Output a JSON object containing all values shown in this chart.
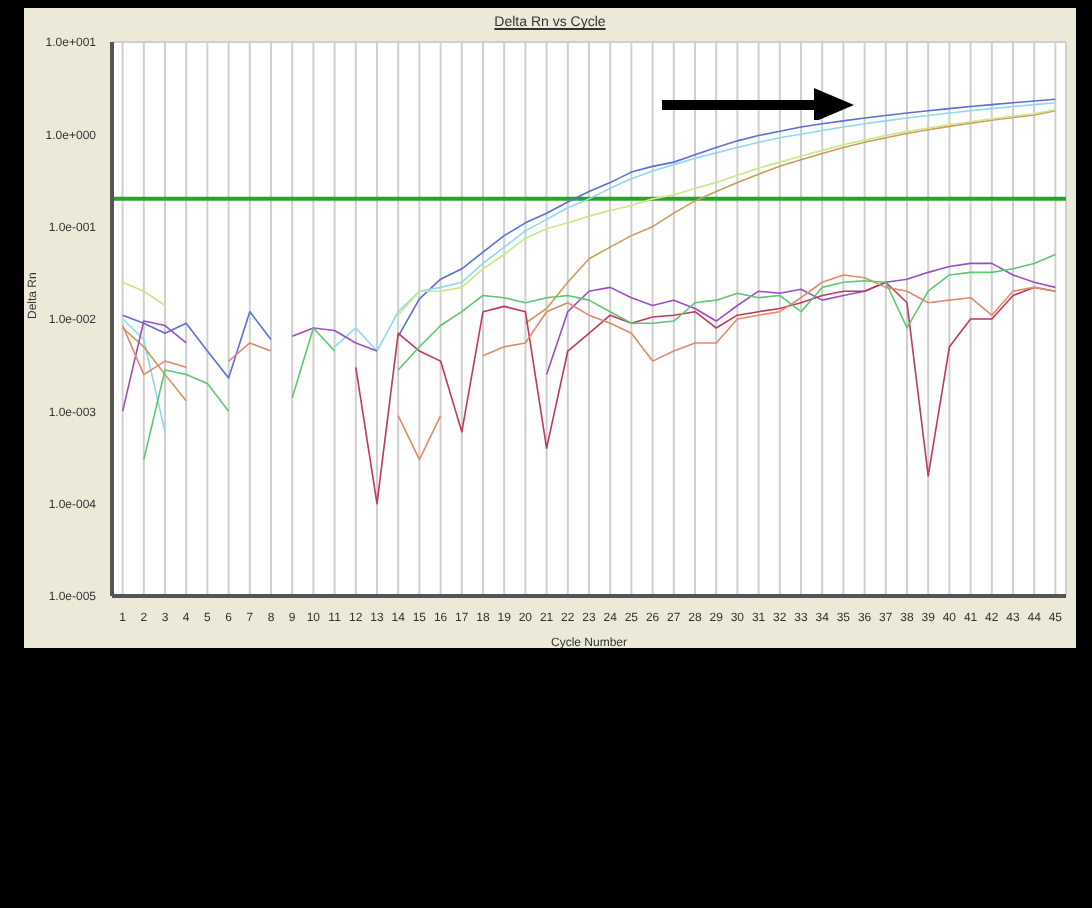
{
  "chart_data": {
    "type": "line",
    "title": "Delta Rn vs Cycle",
    "xlabel": "Cycle Number",
    "ylabel": "Delta Rn",
    "log": "y",
    "grid": true,
    "marker": "none",
    "line_style": "solid",
    "x": [
      1,
      2,
      3,
      4,
      5,
      6,
      7,
      8,
      9,
      10,
      11,
      12,
      13,
      14,
      15,
      16,
      17,
      18,
      19,
      20,
      21,
      22,
      23,
      24,
      25,
      26,
      27,
      28,
      29,
      30,
      31,
      32,
      33,
      34,
      35,
      36,
      37,
      38,
      39,
      40,
      41,
      42,
      43,
      44,
      45
    ],
    "xlim": [
      0.5,
      45.5
    ],
    "xticks": [
      1,
      2,
      3,
      4,
      5,
      6,
      7,
      8,
      9,
      10,
      11,
      12,
      13,
      14,
      15,
      16,
      17,
      18,
      19,
      20,
      21,
      22,
      23,
      24,
      25,
      26,
      27,
      28,
      29,
      30,
      31,
      32,
      33,
      34,
      35,
      36,
      37,
      38,
      39,
      40,
      41,
      42,
      43,
      44,
      45
    ],
    "ylim": [
      1e-05,
      10
    ],
    "yticks": [
      {
        "value": 1e-05,
        "label": "1.0e-005"
      },
      {
        "value": 0.0001,
        "label": "1.0e-004"
      },
      {
        "value": 0.001,
        "label": "1.0e-003"
      },
      {
        "value": 0.01,
        "label": "1.0e-002"
      },
      {
        "value": 0.1,
        "label": "1.0e-001"
      },
      {
        "value": 1,
        "label": "1.0e+000"
      },
      {
        "value": 10,
        "label": "1.0e+001"
      }
    ],
    "ref_lines": [
      {
        "axis": "y",
        "value": 0.2,
        "color": "#2ca02c"
      }
    ],
    "series": [
      {
        "color": "#5b6fd6",
        "values": [
          0.011,
          0.009,
          0.007,
          0.009,
          0.0045,
          0.0023,
          0.012,
          0.006,
          null,
          null,
          null,
          null,
          null,
          0.0065,
          0.0165,
          0.027,
          0.035,
          0.053,
          0.08,
          0.11,
          0.14,
          0.185,
          0.24,
          0.3,
          0.39,
          0.45,
          0.5,
          0.6,
          0.72,
          0.85,
          0.97,
          1.08,
          1.2,
          1.3,
          1.4,
          1.5,
          1.6,
          1.7,
          1.8,
          1.9,
          2.0,
          2.1,
          2.2,
          2.3,
          2.4
        ]
      },
      {
        "color": "#8fd8f0",
        "values": [
          0.01,
          0.006,
          0.0006,
          null,
          null,
          null,
          null,
          null,
          null,
          null,
          0.005,
          0.008,
          0.0045,
          0.012,
          0.02,
          0.022,
          0.025,
          0.04,
          0.06,
          0.09,
          0.12,
          0.16,
          0.2,
          0.26,
          0.33,
          0.4,
          0.47,
          0.55,
          0.63,
          0.72,
          0.82,
          0.92,
          1.0,
          1.1,
          1.2,
          1.3,
          1.4,
          1.5,
          1.6,
          1.7,
          1.8,
          1.9,
          2.0,
          2.1,
          2.2
        ]
      },
      {
        "color": "#d09a5a",
        "values": [
          0.008,
          0.005,
          0.0025,
          0.0013,
          null,
          null,
          null,
          null,
          null,
          null,
          null,
          null,
          null,
          null,
          null,
          null,
          null,
          null,
          null,
          0.009,
          0.013,
          0.025,
          0.045,
          0.06,
          0.08,
          0.1,
          0.14,
          0.19,
          0.24,
          0.3,
          0.37,
          0.45,
          0.53,
          0.62,
          0.72,
          0.82,
          0.92,
          1.02,
          1.12,
          1.22,
          1.32,
          1.42,
          1.52,
          1.62,
          1.8
        ]
      },
      {
        "color": "#c8e88a",
        "values": [
          0.025,
          0.02,
          0.014,
          null,
          null,
          null,
          null,
          null,
          null,
          null,
          null,
          null,
          null,
          0.011,
          0.02,
          0.02,
          0.022,
          0.035,
          0.05,
          0.075,
          0.095,
          0.11,
          0.13,
          0.15,
          0.17,
          0.2,
          0.22,
          0.26,
          0.3,
          0.36,
          0.43,
          0.5,
          0.58,
          0.67,
          0.77,
          0.87,
          0.97,
          1.07,
          1.17,
          1.27,
          1.37,
          1.47,
          1.57,
          1.67,
          1.85
        ]
      },
      {
        "color": "#9a4fc8",
        "values": [
          0.001,
          0.0095,
          0.0085,
          0.0055,
          null,
          null,
          null,
          null,
          0.0065,
          0.008,
          0.0075,
          0.0055,
          0.0045,
          null,
          null,
          null,
          null,
          null,
          null,
          null,
          0.0025,
          0.012,
          0.02,
          0.022,
          0.017,
          0.014,
          0.016,
          0.013,
          0.0095,
          0.014,
          0.02,
          0.019,
          0.021,
          0.016,
          0.018,
          0.02,
          0.025,
          0.027,
          0.032,
          0.037,
          0.04,
          0.04,
          0.03,
          0.025,
          0.022
        ]
      },
      {
        "color": "#c0395a",
        "values": [
          null,
          null,
          null,
          null,
          null,
          null,
          null,
          null,
          null,
          null,
          null,
          0.003,
          0.0001,
          0.007,
          0.0045,
          0.0035,
          0.0006,
          0.012,
          0.0137,
          0.012,
          0.0004,
          0.0045,
          0.007,
          0.011,
          0.009,
          0.0105,
          0.011,
          0.012,
          0.008,
          0.011,
          0.012,
          0.013,
          0.015,
          0.018,
          0.02,
          0.02,
          0.025,
          0.015,
          0.0002,
          0.005,
          0.01,
          0.01,
          0.018,
          0.022,
          0.02
        ]
      },
      {
        "color": "#e08a6a",
        "values": [
          0.0085,
          0.0025,
          0.0035,
          0.003,
          null,
          0.0035,
          0.0055,
          0.0045,
          null,
          null,
          null,
          null,
          null,
          0.0009,
          0.0003,
          0.0009,
          null,
          0.004,
          0.005,
          0.0055,
          0.012,
          0.015,
          0.011,
          0.009,
          0.007,
          0.0035,
          0.0045,
          0.0055,
          0.0055,
          0.01,
          0.011,
          0.012,
          0.017,
          0.025,
          0.03,
          0.028,
          0.022,
          0.02,
          0.015,
          0.016,
          0.017,
          0.011,
          0.02,
          0.022,
          0.02
        ]
      },
      {
        "color": "#5cc870",
        "values": [
          null,
          0.0003,
          0.0028,
          0.0025,
          0.002,
          0.001,
          null,
          null,
          0.0014,
          0.008,
          0.0045,
          null,
          null,
          0.0028,
          0.005,
          0.0085,
          0.012,
          0.018,
          0.017,
          0.015,
          0.017,
          0.018,
          0.016,
          0.012,
          0.009,
          0.009,
          0.0095,
          0.015,
          0.016,
          0.019,
          0.017,
          0.018,
          0.012,
          0.022,
          0.025,
          0.026,
          0.025,
          0.008,
          0.02,
          0.03,
          0.032,
          0.032,
          0.035,
          0.04,
          0.05
        ]
      }
    ]
  }
}
